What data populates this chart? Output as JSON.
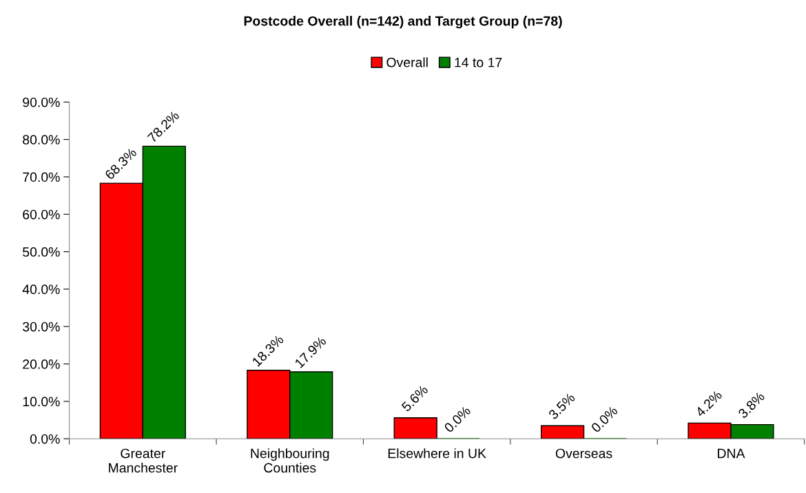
{
  "chart_data": {
    "type": "bar",
    "title": "Postcode Overall (n=142) and Target Group (n=78)",
    "categories": [
      "Greater\nManchester",
      "Neighbouring\nCounties",
      "Elsewhere in UK",
      "Overseas",
      "DNA"
    ],
    "series": [
      {
        "name": "Overall",
        "color": "#ff0000",
        "values": [
          68.3,
          18.3,
          5.6,
          3.5,
          4.2
        ],
        "value_labels": [
          "68.3%",
          "18.3%",
          "5.6%",
          "3.5%",
          "4.2%"
        ]
      },
      {
        "name": "14 to 17",
        "color": "#008000",
        "values": [
          78.2,
          17.9,
          0.0,
          0.0,
          3.8
        ],
        "value_labels": [
          "78.2%",
          "17.9%",
          "0.0%",
          "0.0%",
          "3.8%"
        ]
      }
    ],
    "ylim": [
      0,
      90
    ],
    "yticks": [
      {
        "value": 0,
        "label": "0.0%"
      },
      {
        "value": 10,
        "label": "10.0%"
      },
      {
        "value": 20,
        "label": "20.0%"
      },
      {
        "value": 30,
        "label": "30.0%"
      },
      {
        "value": 40,
        "label": "40.0%"
      },
      {
        "value": 50,
        "label": "50.0%"
      },
      {
        "value": 60,
        "label": "60.0%"
      },
      {
        "value": 70,
        "label": "70.0%"
      },
      {
        "value": 80,
        "label": "80.0%"
      },
      {
        "value": 90,
        "label": "90.0%"
      }
    ],
    "grid": false,
    "legend": "top"
  }
}
